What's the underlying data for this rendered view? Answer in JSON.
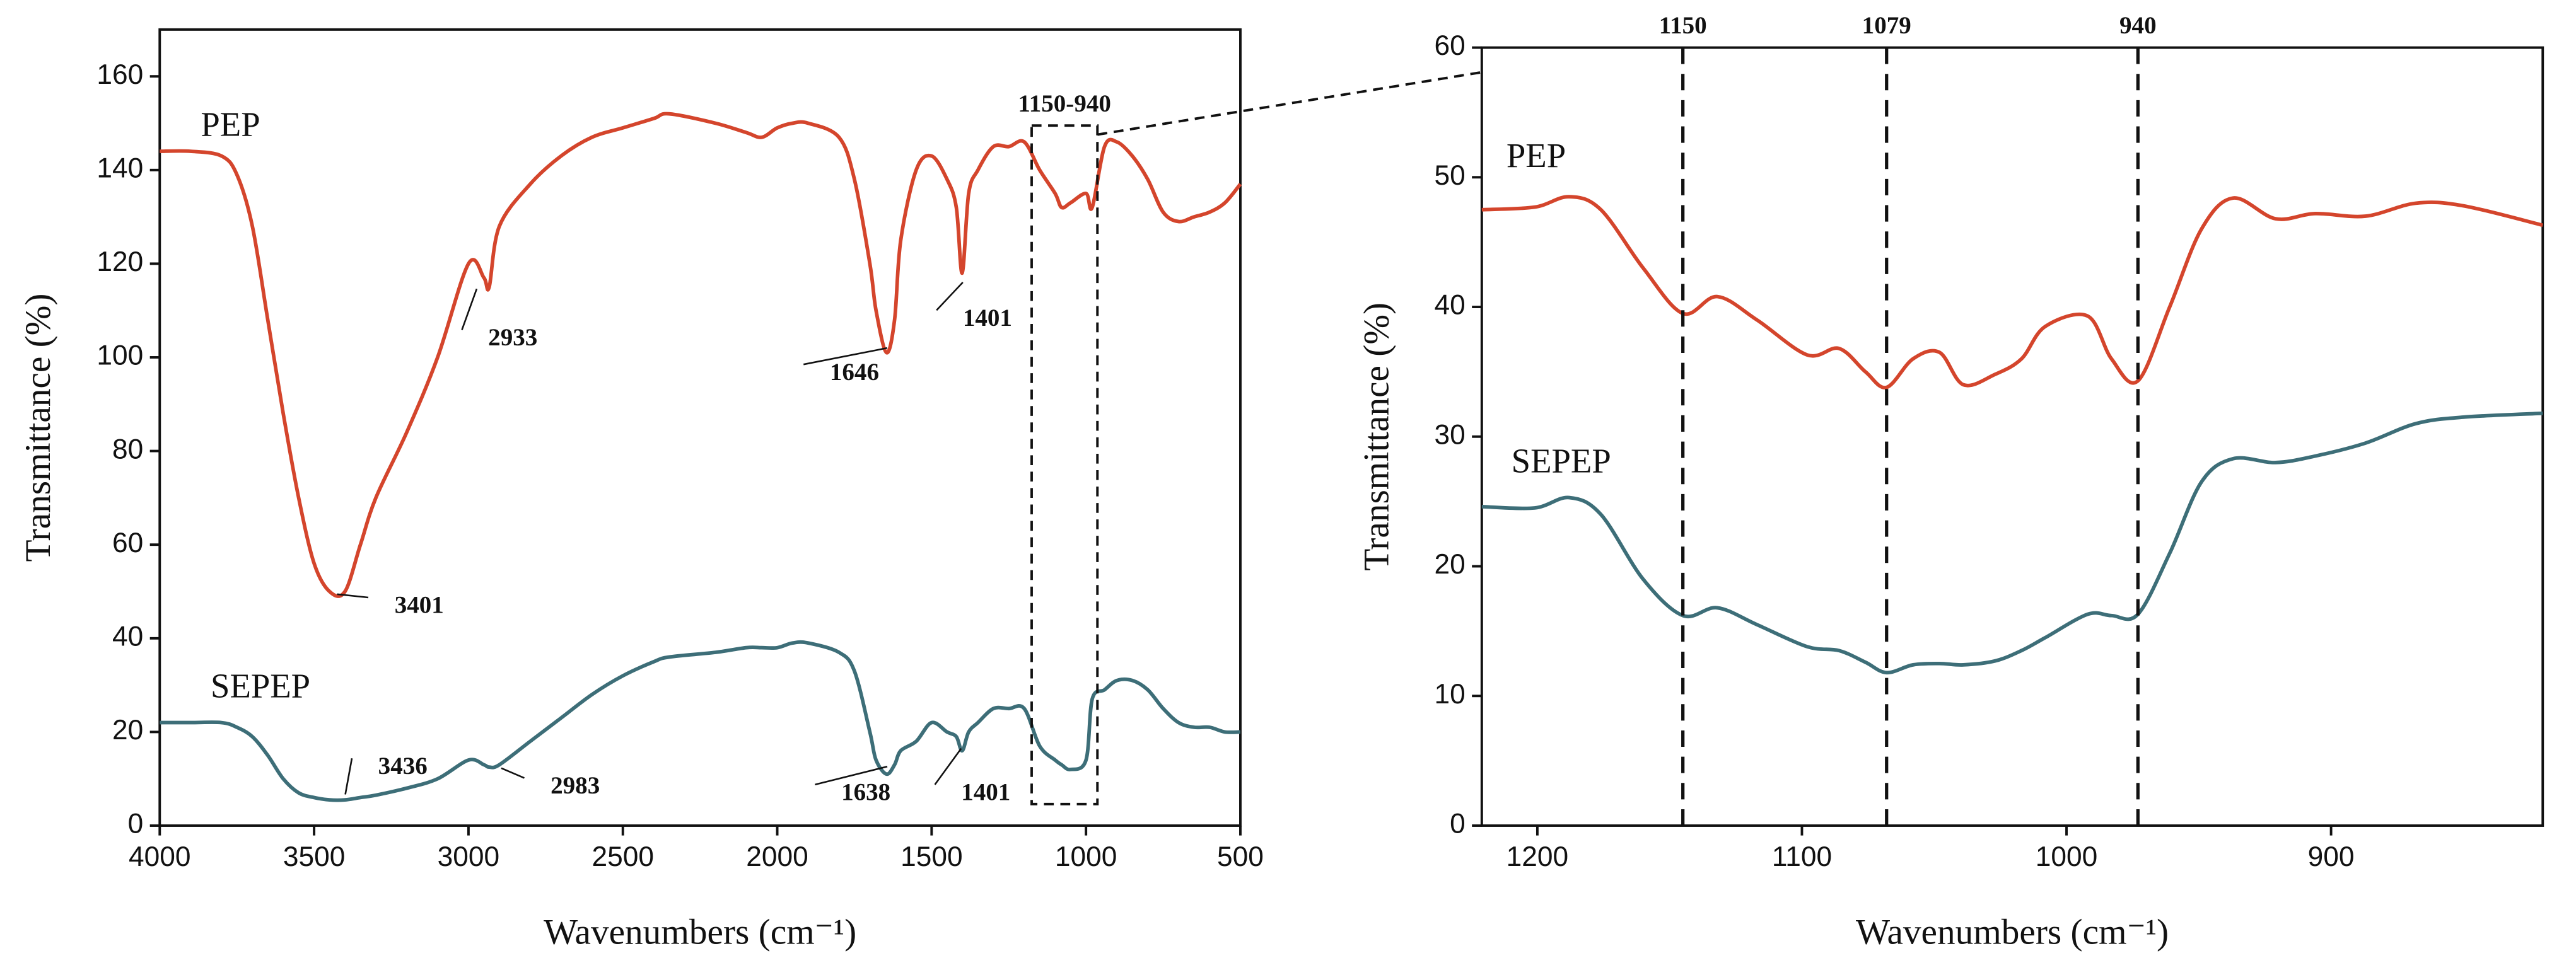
{
  "chart_data": [
    {
      "type": "line",
      "xlabel": "Wavenumbers (cm⁻¹)",
      "ylabel": "Transmittance (%)",
      "xlim": [
        4000,
        500
      ],
      "xticks": [
        4000,
        3500,
        3000,
        2500,
        2000,
        1500,
        1000,
        500
      ],
      "ylim": [
        0,
        170
      ],
      "yticks": [
        0,
        20,
        40,
        60,
        80,
        100,
        120,
        140,
        160
      ],
      "x": [
        4000,
        3900,
        3800,
        3750,
        3700,
        3650,
        3600,
        3550,
        3500,
        3450,
        3400,
        3350,
        3300,
        3200,
        3100,
        3000,
        2950,
        2933,
        2900,
        2800,
        2700,
        2600,
        2500,
        2400,
        2350,
        2200,
        2100,
        2050,
        2000,
        1950,
        1900,
        1800,
        1750,
        1700,
        1680,
        1646,
        1620,
        1600,
        1550,
        1500,
        1450,
        1420,
        1401,
        1380,
        1350,
        1300,
        1250,
        1200,
        1150,
        1100,
        1079,
        1050,
        1000,
        980,
        940,
        900,
        850,
        800,
        750,
        700,
        650,
        600,
        550,
        500
      ],
      "series": [
        {
          "name": "PEP",
          "color": "#d4452c",
          "values": [
            144,
            144,
            143,
            139,
            128,
            108,
            88,
            70,
            56,
            50,
            50,
            60,
            70,
            84,
            100,
            120,
            117,
            115,
            128,
            137,
            143,
            147,
            149,
            151,
            152,
            150,
            148,
            147,
            149,
            150,
            150,
            147,
            138,
            120,
            110,
            101,
            108,
            125,
            140,
            143,
            138,
            132,
            118,
            135,
            140,
            145,
            145,
            146,
            140,
            135,
            132,
            133,
            135,
            132,
            145,
            146,
            143,
            138,
            131,
            129,
            130,
            131,
            133,
            137
          ]
        },
        {
          "name": "SEPEP",
          "color": "#3d6e78",
          "values": [
            22,
            22,
            22,
            21,
            19,
            15,
            10,
            7,
            6,
            5.5,
            5.5,
            6,
            6.5,
            8,
            10,
            14,
            13,
            12.5,
            13,
            18,
            23,
            28,
            32,
            35,
            36,
            37,
            38,
            38,
            38,
            39,
            39,
            37,
            33,
            20,
            14,
            11,
            13,
            16,
            18,
            22,
            20,
            19,
            16,
            20,
            22,
            25,
            25,
            25,
            17,
            14,
            13,
            12,
            14,
            27,
            29,
            31,
            31,
            29,
            25,
            22,
            21,
            21,
            20,
            20
          ]
        }
      ],
      "annotations": [
        "3401",
        "2933",
        "1646",
        "1401",
        "3436",
        "2983",
        "1638",
        "1401"
      ],
      "box": {
        "label": "1150-940",
        "xlim": [
          1176,
          963
        ],
        "ylim": [
          4.6,
          149.5
        ]
      }
    },
    {
      "type": "line",
      "xlabel": "Wavenumbers (cm⁻¹)",
      "ylabel": "Transmittance (%)",
      "xlim": [
        1221,
        820
      ],
      "xticks": [
        1200,
        1100,
        1000,
        900
      ],
      "ylim": [
        0,
        60
      ],
      "yticks": [
        0,
        10,
        20,
        30,
        40,
        50,
        60
      ],
      "x": [
        1221,
        1201,
        1188,
        1176,
        1160,
        1145,
        1132,
        1117,
        1098,
        1086,
        1076,
        1068,
        1058,
        1048,
        1039,
        1027,
        1017,
        1008,
        992,
        983,
        973,
        961,
        949,
        937,
        921,
        906,
        887,
        868,
        850,
        820
      ],
      "series": [
        {
          "name": "PEP",
          "color": "#d4452c",
          "values": [
            47.5,
            47.7,
            48.5,
            47.5,
            43,
            39.5,
            40.8,
            39,
            36.3,
            36.8,
            35,
            33.8,
            36,
            36.5,
            34,
            34.8,
            36,
            38.5,
            39.3,
            36,
            34.3,
            40,
            46,
            48.4,
            46.8,
            47.2,
            47,
            48,
            47.8,
            46.3
          ]
        },
        {
          "name": "SEPEP",
          "color": "#3d6e78",
          "values": [
            24.6,
            24.5,
            25.3,
            24,
            19,
            16.2,
            16.8,
            15.5,
            13.8,
            13.5,
            12.6,
            11.8,
            12.4,
            12.5,
            12.4,
            12.7,
            13.5,
            14.5,
            16.3,
            16.2,
            16.3,
            21,
            26.5,
            28.3,
            28,
            28.5,
            29.5,
            31,
            31.5,
            31.8
          ]
        }
      ],
      "markers": [
        {
          "x": 1145,
          "label": "1150"
        },
        {
          "x": 1068,
          "label": "1079"
        },
        {
          "x": 973,
          "label": "940"
        }
      ]
    }
  ]
}
